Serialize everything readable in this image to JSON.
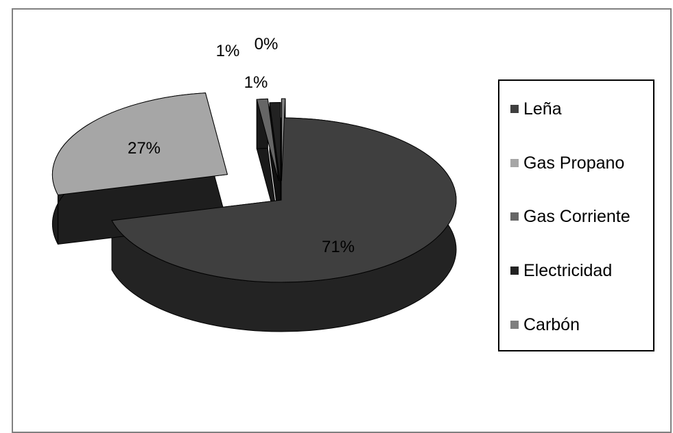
{
  "chart_data": {
    "type": "pie",
    "title": "",
    "three_d": true,
    "exploded": true,
    "legend_position": "right",
    "series": [
      {
        "name": "Leña",
        "value": 71,
        "label": "71%",
        "color": "#3f3f3f",
        "side": "#232323"
      },
      {
        "name": "Gas Propano",
        "value": 27,
        "label": "27%",
        "color": "#a6a6a6",
        "side": "#1e1e1e"
      },
      {
        "name": "Gas Corriente",
        "value": 1,
        "label": "1%",
        "color": "#666666",
        "side": "#1a1a1a"
      },
      {
        "name": "Electricidad",
        "value": 1,
        "label": "1%",
        "color": "#222222",
        "side": "#101010"
      },
      {
        "name": "Carbón",
        "value": 0,
        "label": "0%",
        "color": "#7f7f7f",
        "side": "#2a2a2a"
      }
    ]
  }
}
